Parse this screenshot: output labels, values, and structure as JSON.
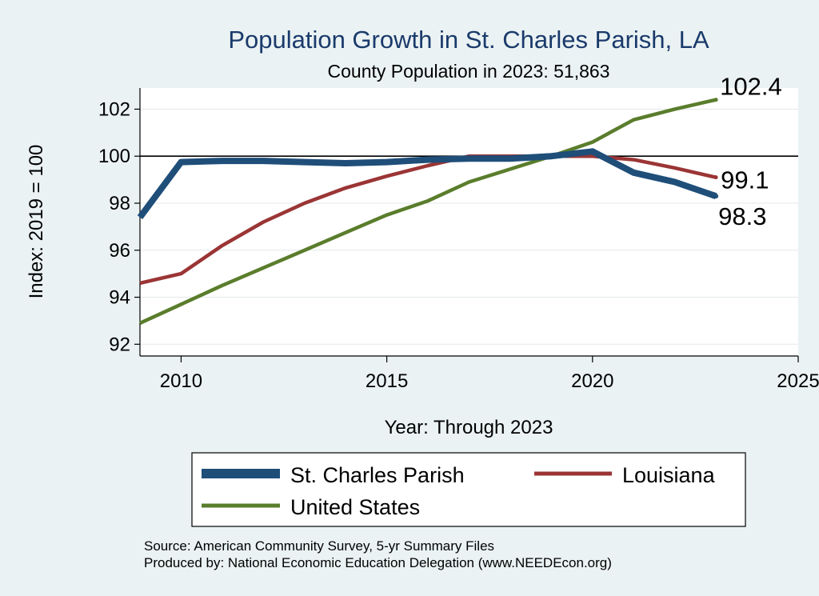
{
  "chart_data": {
    "type": "line",
    "title": "Population Growth in St. Charles Parish, LA",
    "subtitle": "County Population in 2023: 51,863",
    "xlabel": "Year: Through 2023",
    "ylabel": "Index: 2019 = 100",
    "xlim": [
      2009,
      2025
    ],
    "ylim": [
      91.5,
      102.9
    ],
    "xticks": [
      2010,
      2015,
      2020,
      2025
    ],
    "yticks": [
      92,
      94,
      96,
      98,
      100,
      102
    ],
    "reference_line": 100,
    "grid": true,
    "legend_position": "bottom",
    "x": [
      2009,
      2010,
      2011,
      2012,
      2013,
      2014,
      2015,
      2016,
      2017,
      2018,
      2019,
      2020,
      2021,
      2022,
      2023
    ],
    "series": [
      {
        "name": "St. Charles Parish",
        "color": "#1f4e79",
        "values": [
          97.4,
          99.75,
          99.8,
          99.8,
          99.75,
          99.7,
          99.75,
          99.85,
          99.9,
          99.9,
          100.0,
          100.2,
          99.3,
          98.9,
          98.3
        ],
        "end_label": "98.3"
      },
      {
        "name": "Louisiana",
        "color": "#9b3535",
        "values": [
          94.6,
          95.0,
          96.2,
          97.2,
          98.0,
          98.65,
          99.15,
          99.6,
          100.0,
          100.0,
          100.0,
          100.0,
          99.85,
          99.5,
          99.1
        ],
        "end_label": "99.1"
      },
      {
        "name": "United States",
        "color": "#5a7d2c",
        "values": [
          92.9,
          93.7,
          94.5,
          95.25,
          96.0,
          96.75,
          97.5,
          98.1,
          98.9,
          99.45,
          100.0,
          100.6,
          101.55,
          102.0,
          102.4
        ],
        "end_label": "102.4"
      }
    ]
  },
  "notes": {
    "source": "Source: American Community Survey, 5-yr Summary Files",
    "produced_by": "Produced by: National Economic Education Delegation (www.NEEDEcon.org)"
  }
}
